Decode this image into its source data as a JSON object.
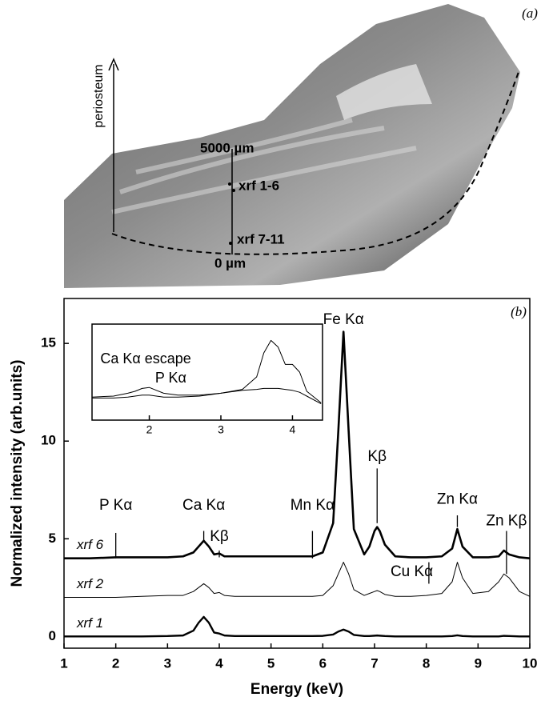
{
  "panel_a": {
    "label": "(a)",
    "annotations": [
      "periosteum",
      "5000 µm",
      "xrf 1-6",
      "xrf 7-11",
      "0 µm"
    ]
  },
  "chart_data": [
    {
      "type": "line",
      "panel_label": "(b)",
      "x_label": "Energy (keV)",
      "y_label": "Normalized intensity (arb.units)",
      "xlim": [
        1,
        10
      ],
      "xticks": [
        1,
        2,
        3,
        4,
        5,
        6,
        7,
        8,
        9,
        10
      ],
      "ylim": [
        -0.6,
        17.3
      ],
      "yticks": [
        0,
        5,
        10,
        15
      ],
      "x": [
        1,
        1.5,
        2,
        2.5,
        3,
        3.3,
        3.5,
        3.6,
        3.7,
        3.8,
        3.9,
        4.0,
        4.1,
        4.3,
        4.6,
        5,
        5.5,
        5.8,
        6.0,
        6.2,
        6.3,
        6.4,
        6.5,
        6.6,
        6.8,
        6.9,
        7.0,
        7.05,
        7.1,
        7.2,
        7.4,
        7.7,
        8.0,
        8.3,
        8.5,
        8.6,
        8.7,
        8.9,
        9.2,
        9.4,
        9.5,
        9.6,
        9.8,
        10
      ],
      "series": [
        {
          "name": "xrf 6",
          "color": "#000000",
          "line_width": 2.6,
          "values": [
            4.0,
            4.0,
            4.05,
            4.05,
            4.05,
            4.1,
            4.3,
            4.6,
            4.9,
            4.6,
            4.2,
            4.25,
            4.1,
            4.1,
            4.1,
            4.1,
            4.1,
            4.1,
            4.3,
            5.8,
            10.5,
            15.6,
            10.5,
            5.5,
            4.2,
            4.6,
            5.4,
            5.6,
            5.4,
            4.7,
            4.1,
            4.05,
            4.05,
            4.1,
            4.5,
            5.5,
            4.6,
            4.05,
            4.05,
            4.1,
            4.4,
            4.2,
            4.05,
            4.0
          ]
        },
        {
          "name": "xrf 2",
          "color": "#000000",
          "line_width": 1,
          "values": [
            2.0,
            2.0,
            2.0,
            2.05,
            2.1,
            2.1,
            2.3,
            2.5,
            2.7,
            2.5,
            2.2,
            2.25,
            2.1,
            2.05,
            2.05,
            2.05,
            2.05,
            2.05,
            2.1,
            2.6,
            3.2,
            3.8,
            3.2,
            2.4,
            2.1,
            2.2,
            2.3,
            2.35,
            2.3,
            2.15,
            2.05,
            2.05,
            2.1,
            2.2,
            2.8,
            3.8,
            3.0,
            2.2,
            2.3,
            2.8,
            3.2,
            3.0,
            2.3,
            2.05
          ]
        },
        {
          "name": "xrf 1",
          "color": "#000000",
          "line_width": 2.4,
          "values": [
            0,
            0,
            0,
            0,
            0.02,
            0.05,
            0.3,
            0.7,
            1.0,
            0.7,
            0.2,
            0.15,
            0.05,
            0.02,
            0.02,
            0.02,
            0.02,
            0.02,
            0.03,
            0.1,
            0.25,
            0.35,
            0.25,
            0.08,
            0.02,
            0.02,
            0.04,
            0.05,
            0.04,
            0.02,
            0,
            0,
            0,
            0,
            0.02,
            0.06,
            0.02,
            0,
            0,
            0,
            0.03,
            0.02,
            0,
            0
          ]
        }
      ],
      "annotations": [
        {
          "text": "P Kα",
          "x": 2.0,
          "y": 6.7,
          "line": [
            2.0,
            5.3,
            4.0
          ]
        },
        {
          "text": "Ca Kα",
          "x": 3.7,
          "y": 6.7,
          "line": [
            3.7,
            5.4,
            4.9
          ]
        },
        {
          "text": "Kβ",
          "x": 4.0,
          "y": 5.1,
          "line": [
            4.0,
            4.4,
            4.05
          ]
        },
        {
          "text": "Mn Kα",
          "x": 5.8,
          "y": 6.7,
          "line": [
            5.8,
            5.4,
            4.0
          ]
        },
        {
          "text": "Fe Kα",
          "x": 6.4,
          "y": 16.2
        },
        {
          "text": "Kβ",
          "x": 7.05,
          "y": 9.2,
          "line": [
            7.05,
            8.6,
            5.8
          ]
        },
        {
          "text": "Zn Kα",
          "x": 8.6,
          "y": 7.0,
          "line": [
            8.6,
            6.2,
            5.6
          ]
        },
        {
          "text": "Zn Kβ",
          "x": 9.55,
          "y": 5.9,
          "line": [
            9.55,
            5.4,
            3.2
          ]
        },
        {
          "text": "Cu Kα",
          "x": 7.72,
          "y": 3.3,
          "line": [
            8.05,
            3.8,
            2.7
          ]
        }
      ]
    },
    {
      "type": "line",
      "xlim": [
        1.2,
        4.42
      ],
      "xticks": [
        2,
        3,
        4
      ],
      "ylim": [
        0,
        10
      ],
      "x": [
        1.2,
        1.5,
        1.7,
        1.8,
        1.9,
        2.0,
        2.1,
        2.2,
        2.4,
        2.7,
        3.0,
        3.3,
        3.5,
        3.6,
        3.7,
        3.8,
        3.9,
        4.0,
        4.1,
        4.2,
        4.4
      ],
      "series": [
        {
          "color": "#000000",
          "line_width": 1,
          "values": [
            2.4,
            2.5,
            2.8,
            3.0,
            3.3,
            3.4,
            3.1,
            2.8,
            2.6,
            2.6,
            2.8,
            3.2,
            4.5,
            7.0,
            8.3,
            7.6,
            5.8,
            5.8,
            5.0,
            3.0,
            1.8
          ]
        },
        {
          "color": "#000000",
          "line_width": 1,
          "values": [
            2.3,
            2.3,
            2.4,
            2.5,
            2.6,
            2.6,
            2.5,
            2.4,
            2.4,
            2.5,
            2.8,
            3.1,
            3.2,
            3.3,
            3.3,
            3.3,
            3.2,
            3.1,
            2.9,
            2.5,
            1.7
          ]
        }
      ],
      "annotations": [
        {
          "text": "Ca Kα escape",
          "x": 1.95,
          "y": 6.3
        },
        {
          "text": "P Kα",
          "x": 2.3,
          "y": 4.3
        }
      ]
    }
  ]
}
